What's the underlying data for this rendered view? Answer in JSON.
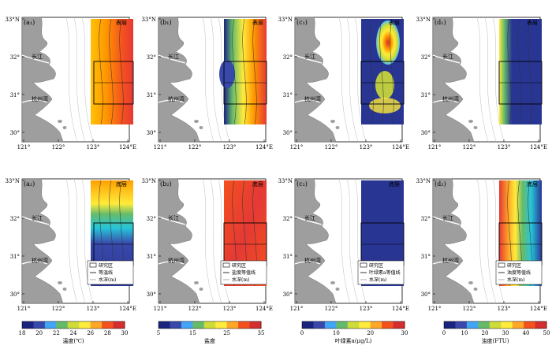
{
  "panels": [
    {
      "id": "a1",
      "label": "(a₁)",
      "layer": "表层",
      "var": "temp"
    },
    {
      "id": "b1",
      "label": "(b₁)",
      "layer": "表层",
      "var": "sal"
    },
    {
      "id": "c1",
      "label": "(c₁)",
      "layer": "表层",
      "var": "chl"
    },
    {
      "id": "d1",
      "label": "(d₁)",
      "layer": "表层",
      "var": "turb"
    },
    {
      "id": "a2",
      "label": "(a₂)",
      "layer": "底层",
      "var": "temp"
    },
    {
      "id": "b2",
      "label": "(b₂)",
      "layer": "底层",
      "var": "sal"
    },
    {
      "id": "c2",
      "label": "(c₂)",
      "layer": "底层",
      "var": "chl"
    },
    {
      "id": "d2",
      "label": "(d₂)",
      "layer": "底层",
      "var": "turb"
    }
  ],
  "lat_labels": [
    "33°N",
    "32°",
    "31°",
    "30°"
  ],
  "lon_labels": [
    "121°",
    "122°",
    "123°",
    "124°E"
  ],
  "place_labels": {
    "yangtze": "长江",
    "hangzhou_bay": "杭州湾"
  },
  "legends": {
    "a2": [
      "研究区",
      "等温线",
      "水深(m)"
    ],
    "b2": [
      "研究区",
      "盐度等值线",
      "水深(m)"
    ],
    "c2": [
      "研究区",
      "叶绿素a等值线",
      "水深(m)"
    ],
    "d2": [
      "研究区",
      "浊度等值线",
      "水深(m)"
    ]
  },
  "colorbars": [
    {
      "var": "temp",
      "title": "温度(℃)",
      "ticks": [
        "18",
        "20",
        "22",
        "24",
        "26",
        "28",
        "30"
      ],
      "colors": [
        "#1a237e",
        "#3949ab",
        "#42a5f5",
        "#66bb6a",
        "#cddc39",
        "#ffeb3b",
        "#ffa726",
        "#f4511e",
        "#d32f2f"
      ]
    },
    {
      "var": "sal",
      "title": "盐度",
      "ticks": [
        "5",
        "15",
        "25",
        "35"
      ],
      "colors": [
        "#1a237e",
        "#3949ab",
        "#42a5f5",
        "#66bb6a",
        "#cddc39",
        "#ffeb3b",
        "#ffa726",
        "#f4511e",
        "#d32f2f"
      ]
    },
    {
      "var": "chl",
      "title": "叶绿素a(μg/L)",
      "ticks": [
        "0",
        "10",
        "20",
        "30"
      ],
      "colors": [
        "#1a237e",
        "#3949ab",
        "#42a5f5",
        "#66bb6a",
        "#cddc39",
        "#ffeb3b",
        "#ffa726",
        "#f4511e",
        "#d32f2f"
      ]
    },
    {
      "var": "turb",
      "title": "浊度(FTU)",
      "ticks": [
        "0",
        "10",
        "20",
        "30",
        "40",
        "50"
      ],
      "colors": [
        "#1a237e",
        "#3949ab",
        "#42a5f5",
        "#66bb6a",
        "#cddc39",
        "#ffeb3b",
        "#ffa726",
        "#f4511e",
        "#d32f2f"
      ]
    }
  ]
}
